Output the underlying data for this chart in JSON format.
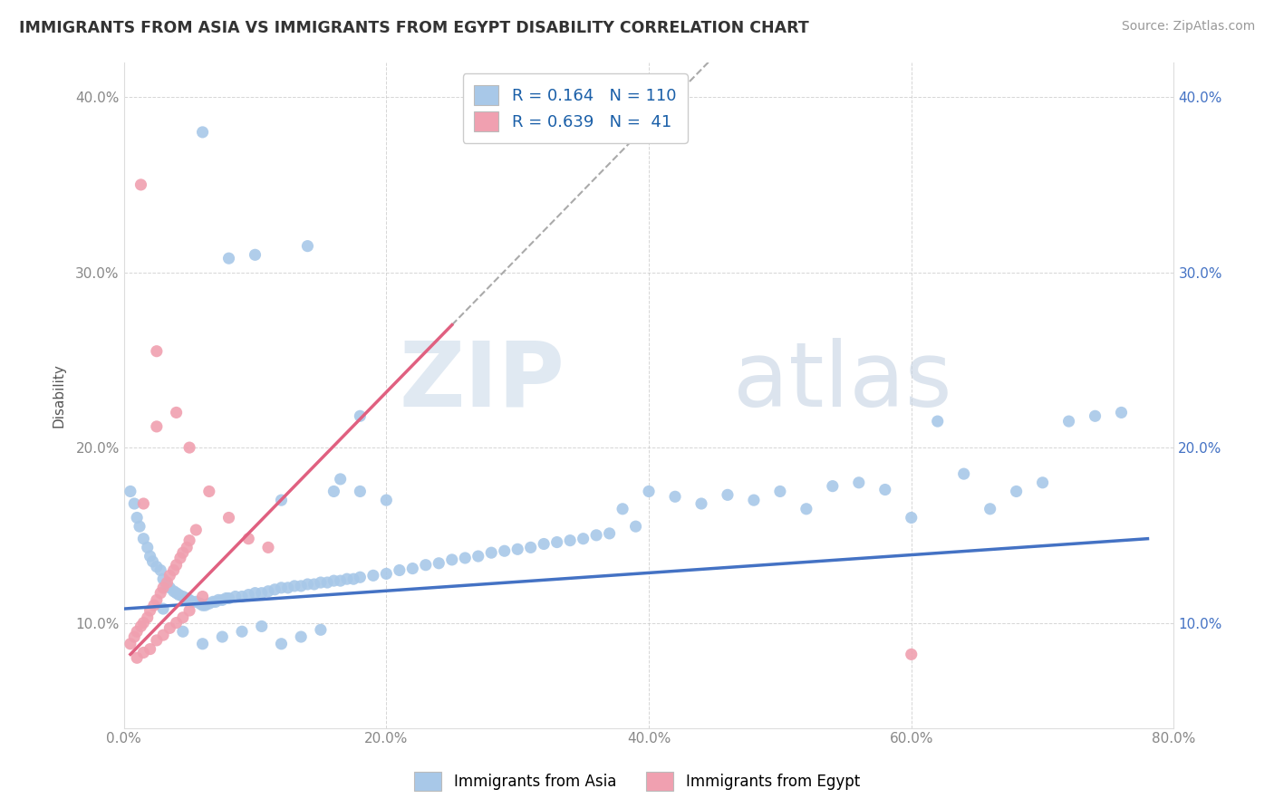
{
  "title": "IMMIGRANTS FROM ASIA VS IMMIGRANTS FROM EGYPT DISABILITY CORRELATION CHART",
  "source": "Source: ZipAtlas.com",
  "ylabel": "Disability",
  "xlim": [
    0.0,
    0.8
  ],
  "ylim": [
    0.04,
    0.42
  ],
  "yticks": [
    0.1,
    0.2,
    0.3,
    0.4
  ],
  "xticks": [
    0.0,
    0.2,
    0.4,
    0.6,
    0.8
  ],
  "xtick_labels": [
    "0.0%",
    "20.0%",
    "40.0%",
    "60.0%",
    "80.0%"
  ],
  "ytick_labels_left": [
    "10.0%",
    "20.0%",
    "30.0%",
    "40.0%"
  ],
  "ytick_labels_right": [
    "10.0%",
    "20.0%",
    "30.0%",
    "40.0%"
  ],
  "asia_color": "#a8c8e8",
  "egypt_color": "#f0a0b0",
  "asia_line_color": "#4472c4",
  "egypt_line_color": "#e06080",
  "R_asia": "0.164",
  "N_asia": "110",
  "R_egypt": "0.639",
  "N_egypt": " 41",
  "watermark_zip": "ZIP",
  "watermark_atlas": "atlas",
  "watermark_color": "#d0dff0",
  "legend_r_color": "#1a5fa8",
  "legend_n_color": "#e06080",
  "grid_color": "#cccccc",
  "asia_x": [
    0.005,
    0.008,
    0.01,
    0.012,
    0.015,
    0.018,
    0.02,
    0.022,
    0.025,
    0.028,
    0.03,
    0.032,
    0.035,
    0.038,
    0.04,
    0.042,
    0.045,
    0.048,
    0.05,
    0.052,
    0.055,
    0.058,
    0.06,
    0.062,
    0.065,
    0.068,
    0.07,
    0.072,
    0.075,
    0.078,
    0.08,
    0.085,
    0.09,
    0.095,
    0.1,
    0.105,
    0.11,
    0.115,
    0.12,
    0.125,
    0.13,
    0.135,
    0.14,
    0.145,
    0.15,
    0.155,
    0.16,
    0.165,
    0.17,
    0.175,
    0.18,
    0.19,
    0.2,
    0.21,
    0.22,
    0.23,
    0.24,
    0.25,
    0.26,
    0.27,
    0.28,
    0.29,
    0.3,
    0.31,
    0.32,
    0.33,
    0.34,
    0.35,
    0.36,
    0.37,
    0.38,
    0.39,
    0.4,
    0.42,
    0.44,
    0.46,
    0.48,
    0.5,
    0.52,
    0.54,
    0.56,
    0.58,
    0.6,
    0.62,
    0.64,
    0.66,
    0.68,
    0.7,
    0.72,
    0.74,
    0.76,
    0.03,
    0.045,
    0.06,
    0.075,
    0.09,
    0.105,
    0.12,
    0.135,
    0.15,
    0.165,
    0.18,
    0.06,
    0.08,
    0.1,
    0.12,
    0.14,
    0.16,
    0.18,
    0.2
  ],
  "asia_y": [
    0.175,
    0.168,
    0.16,
    0.155,
    0.148,
    0.143,
    0.138,
    0.135,
    0.132,
    0.13,
    0.125,
    0.122,
    0.12,
    0.118,
    0.117,
    0.116,
    0.115,
    0.114,
    0.113,
    0.112,
    0.112,
    0.111,
    0.11,
    0.11,
    0.111,
    0.112,
    0.112,
    0.113,
    0.113,
    0.114,
    0.114,
    0.115,
    0.115,
    0.116,
    0.117,
    0.117,
    0.118,
    0.119,
    0.12,
    0.12,
    0.121,
    0.121,
    0.122,
    0.122,
    0.123,
    0.123,
    0.124,
    0.124,
    0.125,
    0.125,
    0.126,
    0.127,
    0.128,
    0.13,
    0.131,
    0.133,
    0.134,
    0.136,
    0.137,
    0.138,
    0.14,
    0.141,
    0.142,
    0.143,
    0.145,
    0.146,
    0.147,
    0.148,
    0.15,
    0.151,
    0.165,
    0.155,
    0.175,
    0.172,
    0.168,
    0.173,
    0.17,
    0.175,
    0.165,
    0.178,
    0.18,
    0.176,
    0.16,
    0.215,
    0.185,
    0.165,
    0.175,
    0.18,
    0.215,
    0.218,
    0.22,
    0.108,
    0.095,
    0.088,
    0.092,
    0.095,
    0.098,
    0.088,
    0.092,
    0.096,
    0.182,
    0.175,
    0.38,
    0.308,
    0.31,
    0.17,
    0.315,
    0.175,
    0.218,
    0.17
  ],
  "egypt_x": [
    0.005,
    0.008,
    0.01,
    0.013,
    0.015,
    0.018,
    0.02,
    0.023,
    0.025,
    0.028,
    0.03,
    0.033,
    0.035,
    0.038,
    0.04,
    0.043,
    0.045,
    0.048,
    0.05,
    0.055,
    0.01,
    0.015,
    0.02,
    0.025,
    0.03,
    0.035,
    0.04,
    0.045,
    0.05,
    0.06,
    0.013,
    0.025,
    0.04,
    0.05,
    0.065,
    0.08,
    0.095,
    0.11,
    0.015,
    0.025,
    0.6
  ],
  "egypt_y": [
    0.088,
    0.092,
    0.095,
    0.098,
    0.1,
    0.103,
    0.107,
    0.11,
    0.113,
    0.117,
    0.12,
    0.123,
    0.127,
    0.13,
    0.133,
    0.137,
    0.14,
    0.143,
    0.147,
    0.153,
    0.08,
    0.083,
    0.085,
    0.09,
    0.093,
    0.097,
    0.1,
    0.103,
    0.107,
    0.115,
    0.35,
    0.255,
    0.22,
    0.2,
    0.175,
    0.16,
    0.148,
    0.143,
    0.168,
    0.212,
    0.082
  ]
}
